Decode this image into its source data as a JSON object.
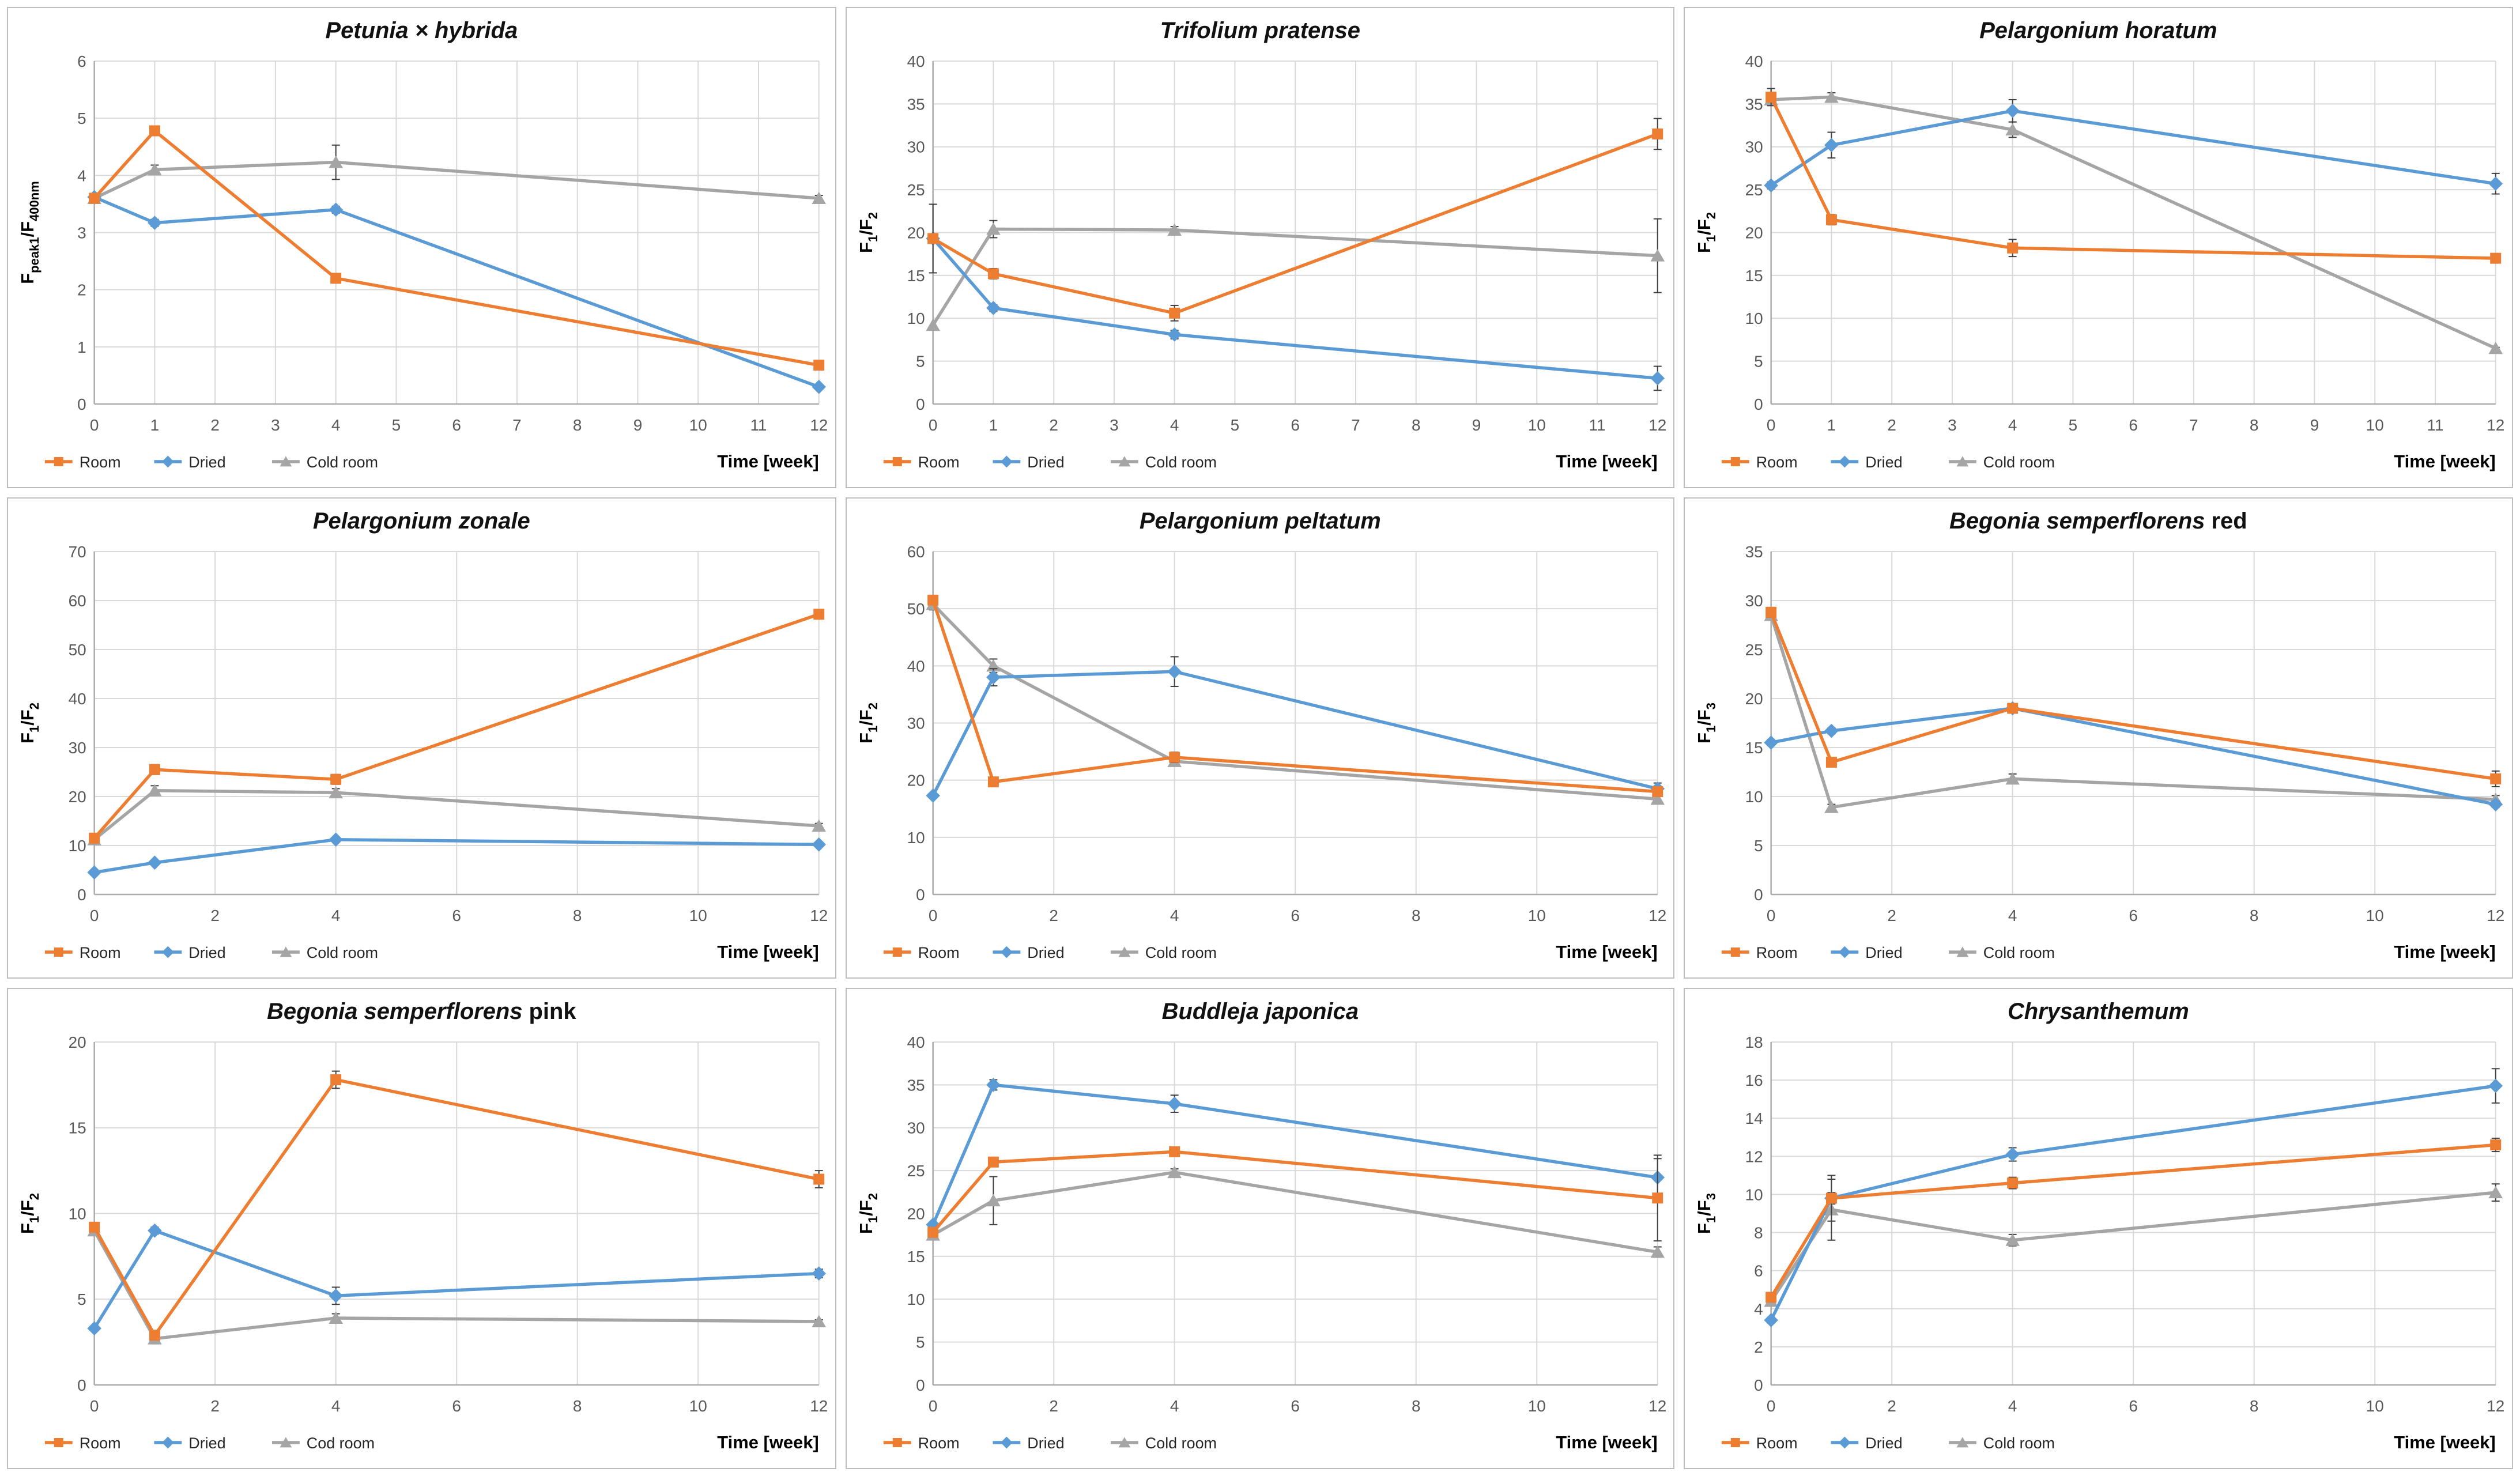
{
  "page": {
    "description": "3x3 grid of line charts of fluorescence ratios over storage time for nine ornamental plant species",
    "colors": {
      "room": "#ED7D31",
      "dried": "#5B9BD5",
      "cold_room": "#A5A5A5",
      "error_bar": "#404040",
      "grid_line": "#D9D9D9",
      "axis_line": "#ABABAB",
      "tick_text": "#595959",
      "title_text": "#111111",
      "legend_text": "#262626"
    }
  },
  "chart_data": [
    {
      "type": "line",
      "title_parts": [
        {
          "text": "Petunia × hybrida",
          "italic": true
        }
      ],
      "ylabel": "F_{peak1}/F_{400nm}",
      "xlabel": "Time [week]",
      "ylim": [
        0,
        6
      ],
      "ystep": 1,
      "xlim": [
        0,
        12
      ],
      "xticks": [
        0,
        1,
        2,
        3,
        4,
        5,
        6,
        7,
        8,
        9,
        10,
        11,
        12
      ],
      "x": [
        0,
        1,
        4,
        12
      ],
      "grid": true,
      "legend_position": "bottom-left",
      "series": [
        {
          "name": "Room",
          "color_key": "room",
          "marker": "square",
          "values": [
            3.6,
            4.78,
            2.2,
            0.68
          ],
          "errors": [
            0,
            0,
            0,
            0
          ]
        },
        {
          "name": "Dried",
          "color_key": "dried",
          "marker": "diamond",
          "values": [
            3.62,
            3.17,
            3.4,
            0.3
          ],
          "errors": [
            0,
            0.06,
            0.06,
            0.04
          ]
        },
        {
          "name": "Cold room",
          "color_key": "cold_room",
          "marker": "triangle",
          "values": [
            3.6,
            4.1,
            4.23,
            3.6
          ],
          "errors": [
            0,
            0.08,
            0.3,
            0.05
          ]
        }
      ]
    },
    {
      "type": "line",
      "title_parts": [
        {
          "text": "Trifolium pratense",
          "italic": true
        }
      ],
      "ylabel": "F_{1}/F_{2}",
      "xlabel": "Time [week]",
      "ylim": [
        0,
        40
      ],
      "ystep": 5,
      "xlim": [
        0,
        12
      ],
      "xticks": [
        0,
        1,
        2,
        3,
        4,
        5,
        6,
        7,
        8,
        9,
        10,
        11,
        12
      ],
      "x": [
        0,
        1,
        4,
        12
      ],
      "grid": true,
      "legend_position": "bottom-left",
      "series": [
        {
          "name": "Room",
          "color_key": "room",
          "marker": "square",
          "values": [
            19.3,
            15.2,
            10.6,
            31.5
          ],
          "errors": [
            4.0,
            0.6,
            0.9,
            1.8
          ]
        },
        {
          "name": "Dried",
          "color_key": "dried",
          "marker": "diamond",
          "values": [
            19.3,
            11.2,
            8.1,
            3.0
          ],
          "errors": [
            0,
            0.4,
            0.5,
            1.4
          ]
        },
        {
          "name": "Cold room",
          "color_key": "cold_room",
          "marker": "triangle",
          "values": [
            9.2,
            20.4,
            20.3,
            17.3
          ],
          "errors": [
            0,
            1.0,
            0.4,
            4.3
          ]
        }
      ]
    },
    {
      "type": "line",
      "title_parts": [
        {
          "text": "Pelargonium horatum",
          "italic": true
        }
      ],
      "ylabel": "F_{1}/F_{2}",
      "xlabel": "Time [week]",
      "ylim": [
        0,
        40
      ],
      "ystep": 5,
      "xlim": [
        0,
        12
      ],
      "xticks": [
        0,
        1,
        2,
        3,
        4,
        5,
        6,
        7,
        8,
        9,
        10,
        11,
        12
      ],
      "x": [
        0,
        1,
        4,
        12
      ],
      "grid": true,
      "legend_position": "bottom-left",
      "series": [
        {
          "name": "Room",
          "color_key": "room",
          "marker": "square",
          "values": [
            35.8,
            21.5,
            18.2,
            17.0
          ],
          "errors": [
            1.0,
            0.6,
            1.0,
            0.3
          ]
        },
        {
          "name": "Dried",
          "color_key": "dried",
          "marker": "diamond",
          "values": [
            25.5,
            30.2,
            34.2,
            25.7
          ],
          "errors": [
            0.4,
            1.5,
            1.3,
            1.2
          ]
        },
        {
          "name": "Cold room",
          "color_key": "cold_room",
          "marker": "triangle",
          "values": [
            35.5,
            35.8,
            32.0,
            6.5
          ],
          "errors": [
            0.4,
            0.5,
            0.9,
            0.1
          ]
        }
      ]
    },
    {
      "type": "line",
      "title_parts": [
        {
          "text": "Pelargonium zonale",
          "italic": true
        }
      ],
      "ylabel": "F_{1}/F_{2}",
      "xlabel": "Time [week]",
      "ylim": [
        0,
        70
      ],
      "ystep": 10,
      "xlim": [
        0,
        12
      ],
      "xticks": [
        0,
        2,
        4,
        6,
        8,
        10,
        12
      ],
      "x": [
        0,
        1,
        4,
        12
      ],
      "grid": true,
      "legend_position": "bottom-left",
      "series": [
        {
          "name": "Room",
          "color_key": "room",
          "marker": "square",
          "values": [
            11.5,
            25.5,
            23.5,
            57.2
          ],
          "errors": [
            0.5,
            1.0,
            1.0,
            0.8
          ]
        },
        {
          "name": "Dried",
          "color_key": "dried",
          "marker": "diamond",
          "values": [
            4.5,
            6.5,
            11.2,
            10.2
          ],
          "errors": [
            0.2,
            0.2,
            0.3,
            0.3
          ]
        },
        {
          "name": "Cold room",
          "color_key": "cold_room",
          "marker": "triangle",
          "values": [
            11.2,
            21.2,
            20.8,
            14.0
          ],
          "errors": [
            0.3,
            1.0,
            0.8,
            0.5
          ]
        }
      ]
    },
    {
      "type": "line",
      "title_parts": [
        {
          "text": "Pelargonium peltatum",
          "italic": true
        }
      ],
      "ylabel": "F_{1}/F_{2}",
      "xlabel": "Time [week]",
      "ylim": [
        0,
        60
      ],
      "ystep": 10,
      "xlim": [
        0,
        12
      ],
      "xticks": [
        0,
        2,
        4,
        6,
        8,
        10,
        12
      ],
      "x": [
        0,
        1,
        4,
        12
      ],
      "grid": true,
      "legend_position": "bottom-left",
      "series": [
        {
          "name": "Room",
          "color_key": "room",
          "marker": "square",
          "values": [
            51.5,
            19.7,
            24.0,
            18.0
          ],
          "errors": [
            0.8,
            0.8,
            0.9,
            0.5
          ]
        },
        {
          "name": "Dried",
          "color_key": "dried",
          "marker": "diamond",
          "values": [
            17.3,
            38.0,
            39.0,
            18.5
          ],
          "errors": [
            0.2,
            1.5,
            2.6,
            1.0
          ]
        },
        {
          "name": "Cold room",
          "color_key": "cold_room",
          "marker": "triangle",
          "values": [
            50.8,
            40.0,
            23.3,
            16.7
          ],
          "errors": [
            1.0,
            1.2,
            0.5,
            0.6
          ]
        }
      ]
    },
    {
      "type": "line",
      "title_parts": [
        {
          "text": "Begonia semperflorens",
          "italic": true
        },
        {
          "text": " red",
          "italic": false
        }
      ],
      "ylabel": "F_{1}/F_{3}",
      "xlabel": "Time [week]",
      "ylim": [
        0,
        35
      ],
      "ystep": 5,
      "xlim": [
        0,
        12
      ],
      "xticks": [
        0,
        2,
        4,
        6,
        8,
        10,
        12
      ],
      "x": [
        0,
        1,
        4,
        12
      ],
      "grid": true,
      "legend_position": "bottom-left",
      "series": [
        {
          "name": "Room",
          "color_key": "room",
          "marker": "square",
          "values": [
            28.8,
            13.5,
            19.0,
            11.8
          ],
          "errors": [
            0.5,
            0.5,
            0.5,
            0.8
          ]
        },
        {
          "name": "Dried",
          "color_key": "dried",
          "marker": "diamond",
          "values": [
            15.5,
            16.7,
            19.0,
            9.2
          ],
          "errors": [
            0.3,
            0.3,
            0.3,
            0.3
          ]
        },
        {
          "name": "Cold room",
          "color_key": "cold_room",
          "marker": "triangle",
          "values": [
            28.5,
            8.9,
            11.8,
            9.7
          ],
          "errors": [
            0.3,
            0.3,
            0.5,
            0.4
          ]
        }
      ]
    },
    {
      "type": "line",
      "title_parts": [
        {
          "text": "Begonia semperflorens",
          "italic": true
        },
        {
          "text": " pink",
          "italic": false
        }
      ],
      "ylabel": "F_{1}/F_{2}",
      "xlabel": "Time [week]",
      "ylim": [
        0,
        20
      ],
      "ystep": 5,
      "xlim": [
        0,
        12
      ],
      "xticks": [
        0,
        2,
        4,
        6,
        8,
        10,
        12
      ],
      "x": [
        0,
        1,
        4,
        12
      ],
      "grid": true,
      "legend_position": "bottom-left",
      "series": [
        {
          "name": "Room",
          "color_key": "room",
          "marker": "square",
          "values": [
            9.2,
            2.9,
            17.8,
            12.0
          ],
          "errors": [
            0.2,
            0.2,
            0.5,
            0.5
          ]
        },
        {
          "name": "Dried",
          "color_key": "dried",
          "marker": "diamond",
          "values": [
            3.3,
            9.0,
            5.2,
            6.5
          ],
          "errors": [
            0.1,
            0.2,
            0.5,
            0.25
          ]
        },
        {
          "name": "Cod room",
          "color_key": "cold_room",
          "marker": "triangle",
          "values": [
            9.0,
            2.7,
            3.9,
            3.7
          ],
          "errors": [
            0.1,
            0.3,
            0.25,
            0.1
          ]
        }
      ]
    },
    {
      "type": "line",
      "title_parts": [
        {
          "text": "Buddleja japonica",
          "italic": true
        }
      ],
      "ylabel": "F_{1}/F_{2}",
      "xlabel": "Time [week]",
      "ylim": [
        0,
        40
      ],
      "ystep": 5,
      "xlim": [
        0,
        12
      ],
      "xticks": [
        0,
        2,
        4,
        6,
        8,
        10,
        12
      ],
      "x": [
        0,
        1,
        4,
        12
      ],
      "grid": true,
      "legend_position": "bottom-left",
      "series": [
        {
          "name": "Room",
          "color_key": "room",
          "marker": "square",
          "values": [
            17.8,
            26.0,
            27.2,
            21.8
          ],
          "errors": [
            0.4,
            0.4,
            0.5,
            5.0
          ]
        },
        {
          "name": "Dried",
          "color_key": "dried",
          "marker": "diamond",
          "values": [
            18.7,
            35.0,
            32.8,
            24.2
          ],
          "errors": [
            0.3,
            0.6,
            1.0,
            2.2
          ]
        },
        {
          "name": "Cold room",
          "color_key": "cold_room",
          "marker": "triangle",
          "values": [
            17.5,
            21.5,
            24.8,
            15.5
          ],
          "errors": [
            0.3,
            2.8,
            0.4,
            0.6
          ]
        }
      ]
    },
    {
      "type": "line",
      "title_parts": [
        {
          "text": "Chrysanthemum",
          "italic": true
        }
      ],
      "ylabel": "F_{1}/F_{3}",
      "xlabel": "Time [week]",
      "ylim": [
        0,
        18
      ],
      "ystep": 2,
      "xlim": [
        0,
        12
      ],
      "xticks": [
        0,
        2,
        4,
        6,
        8,
        10,
        12
      ],
      "x": [
        0,
        1,
        4,
        12
      ],
      "grid": true,
      "legend_position": "bottom-left",
      "series": [
        {
          "name": "Room",
          "color_key": "room",
          "marker": "square",
          "values": [
            4.6,
            9.8,
            10.6,
            12.6
          ],
          "errors": [
            0.25,
            1.2,
            0.3,
            0.35
          ]
        },
        {
          "name": "Dried",
          "color_key": "dried",
          "marker": "diamond",
          "values": [
            3.4,
            9.8,
            12.1,
            15.7
          ],
          "errors": [
            0.15,
            0.3,
            0.35,
            0.9
          ]
        },
        {
          "name": "Cold room",
          "color_key": "cold_room",
          "marker": "triangle",
          "values": [
            4.4,
            9.2,
            7.6,
            10.1
          ],
          "errors": [
            0.2,
            1.6,
            0.3,
            0.45
          ]
        }
      ]
    }
  ]
}
